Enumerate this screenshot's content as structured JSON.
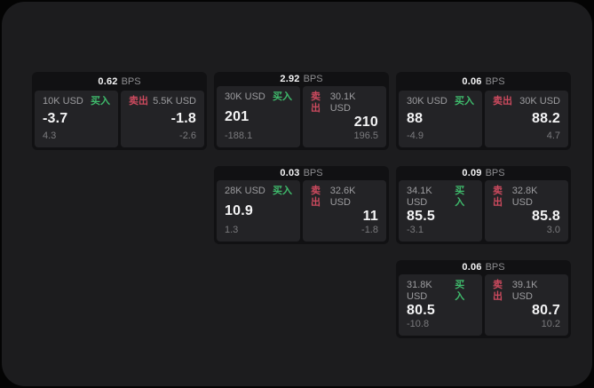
{
  "labels": {
    "buy": "买入",
    "sell": "卖出"
  },
  "units": {
    "bps": "BPS"
  },
  "colors": {
    "page_bg": "#040404",
    "panel_bg": "#1c1c1e",
    "card_bg": "#111113",
    "tile_bg": "#232326",
    "buy_green": "#3fbb6c",
    "sell_red": "#cc4a5e",
    "value_white": "#f4f4f5",
    "label_gray": "#9c9c9f",
    "delta_gray": "#7a7a7d"
  },
  "cards": [
    {
      "bps": "0.62",
      "buy_amount": "10K USD",
      "buy_price": "-3.7",
      "buy_delta": "4.3",
      "sell_amount": "5.5K USD",
      "sell_price": "-1.8",
      "sell_delta": "-2.6"
    },
    {
      "bps": "2.92",
      "buy_amount": "30K USD",
      "buy_price": "201",
      "buy_delta": "-188.1",
      "sell_amount": "30.1K USD",
      "sell_price": "210",
      "sell_delta": "196.5"
    },
    {
      "bps": "0.06",
      "buy_amount": "30K USD",
      "buy_price": "88",
      "buy_delta": "-4.9",
      "sell_amount": "30K USD",
      "sell_price": "88.2",
      "sell_delta": "4.7"
    },
    {
      "bps": "0.03",
      "buy_amount": "28K USD",
      "buy_price": "10.9",
      "buy_delta": "1.3",
      "sell_amount": "32.6K USD",
      "sell_price": "11",
      "sell_delta": "-1.8"
    },
    {
      "bps": "0.09",
      "buy_amount": "34.1K USD",
      "buy_price": "85.5",
      "buy_delta": "-3.1",
      "sell_amount": "32.8K USD",
      "sell_price": "85.8",
      "sell_delta": "3.0"
    },
    {
      "bps": "0.06",
      "buy_amount": "31.8K USD",
      "buy_price": "80.5",
      "buy_delta": "-10.8",
      "sell_amount": "39.1K USD",
      "sell_price": "80.7",
      "sell_delta": "10.2"
    }
  ]
}
